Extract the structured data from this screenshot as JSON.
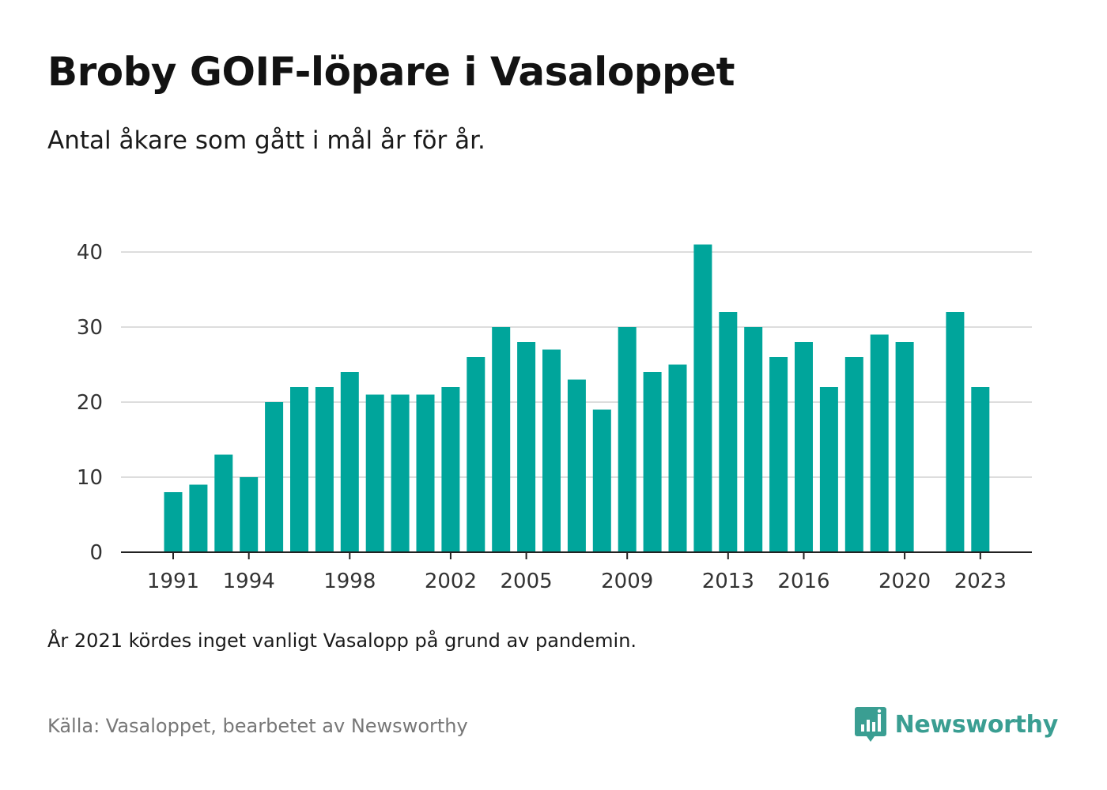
{
  "title": "Broby GOIF-löpare i Vasaloppet",
  "subtitle": "Antal åkare som gått i mål år för år.",
  "note": "År 2021 kördes inget vanligt Vasalopp på grund av pandemin.",
  "source": "Källa: Vasaloppet, bearbetet av Newsworthy",
  "brand": {
    "name": "Newsworthy",
    "color": "#3a9e92"
  },
  "chart_data": {
    "type": "bar",
    "years": [
      1991,
      1992,
      1993,
      1994,
      1995,
      1996,
      1997,
      1998,
      1999,
      2000,
      2001,
      2002,
      2003,
      2004,
      2005,
      2006,
      2007,
      2008,
      2009,
      2010,
      2011,
      2012,
      2013,
      2014,
      2015,
      2016,
      2017,
      2018,
      2019,
      2020,
      2021,
      2022,
      2023
    ],
    "values": [
      8,
      9,
      13,
      10,
      20,
      22,
      22,
      24,
      21,
      21,
      21,
      22,
      26,
      30,
      28,
      27,
      23,
      19,
      30,
      24,
      25,
      41,
      32,
      30,
      26,
      28,
      22,
      26,
      29,
      28,
      null,
      32,
      22
    ],
    "x_tick_labels": [
      "1991",
      "1994",
      "1998",
      "2002",
      "2005",
      "2009",
      "2013",
      "2016",
      "2020",
      "2023"
    ],
    "y_ticks": [
      0,
      10,
      20,
      30,
      40
    ],
    "ylim": [
      0,
      42
    ],
    "bar_color": "#00a59b",
    "grid": true
  }
}
